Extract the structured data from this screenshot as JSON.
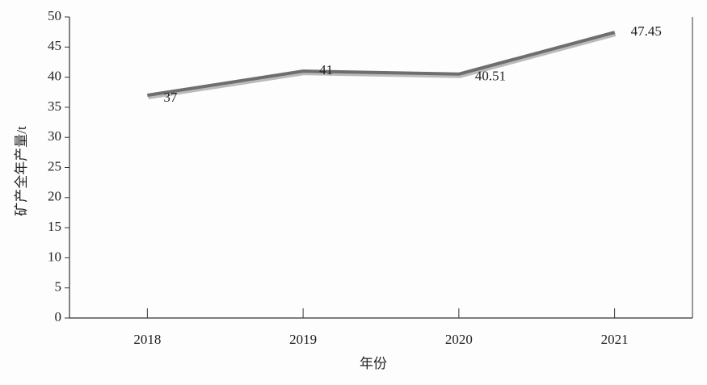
{
  "chart_data": {
    "type": "line",
    "categories": [
      "2018",
      "2019",
      "2020",
      "2021"
    ],
    "series": [
      {
        "name": "矿产全年产量",
        "color": "#6e6e6e",
        "values": [
          37,
          41,
          40.51,
          47.45
        ]
      }
    ],
    "ylim": [
      0,
      50
    ],
    "yticks": [
      0,
      5,
      10,
      15,
      20,
      25,
      30,
      35,
      40,
      45,
      50
    ],
    "xlabel": "年份",
    "ylabel": "矿产全年产量/t",
    "grid": false
  }
}
